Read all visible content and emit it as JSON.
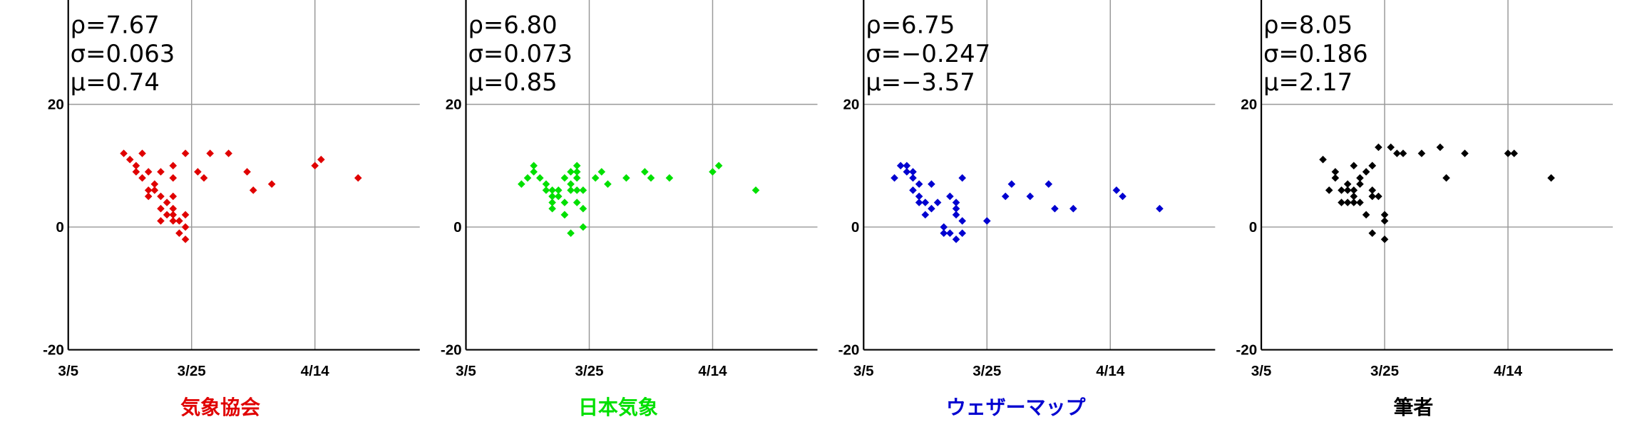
{
  "chart_data": [
    {
      "type": "scatter",
      "title": "気象協会",
      "color": "#e00000",
      "annotations": [
        "ρ=7.67",
        "σ=0.063",
        "μ=0.74"
      ],
      "x": [
        9,
        10,
        11,
        12,
        11,
        12,
        13,
        13,
        13,
        14,
        14,
        15,
        15,
        15,
        15,
        16,
        16,
        17,
        17,
        17,
        17,
        17,
        17,
        18,
        18,
        19,
        19,
        19,
        19,
        21,
        22,
        23,
        26,
        29,
        30,
        33,
        40,
        41,
        47
      ],
      "values": [
        12,
        11,
        10,
        12,
        9,
        8,
        9,
        6,
        5,
        7,
        6,
        9,
        5,
        3,
        1,
        4,
        2,
        1,
        10,
        8,
        5,
        3,
        2,
        1,
        -1,
        12,
        2,
        0,
        -2,
        9,
        8,
        12,
        12,
        9,
        6,
        7,
        10,
        11,
        8
      ],
      "xlim": [
        0,
        57
      ],
      "ylim": [
        -20,
        37
      ],
      "xticks": [
        {
          "value": 0,
          "label": "3/5"
        },
        {
          "value": 20,
          "label": "3/25"
        },
        {
          "value": 40,
          "label": "4/14"
        }
      ],
      "yticks": [
        20,
        0,
        -20
      ]
    },
    {
      "type": "scatter",
      "title": "日本気象",
      "color": "#00e000",
      "annotations": [
        "ρ=6.80",
        "σ=0.073",
        "μ=0.85"
      ],
      "x": [
        9,
        10,
        11,
        11,
        12,
        13,
        13,
        14,
        14,
        14,
        14,
        14,
        15,
        15,
        16,
        16,
        16,
        16,
        17,
        17,
        17,
        17,
        18,
        18,
        18,
        18,
        18,
        19,
        19,
        19,
        21,
        22,
        23,
        26,
        29,
        30,
        33,
        40,
        41,
        47
      ],
      "values": [
        7,
        8,
        9,
        10,
        8,
        6,
        7,
        5,
        6,
        5,
        4,
        3,
        6,
        5,
        2,
        8,
        2,
        4,
        7,
        9,
        -1,
        6,
        9,
        6,
        4,
        10,
        8,
        6,
        3,
        0,
        8,
        9,
        7,
        8,
        9,
        8,
        8,
        9,
        10,
        6
      ],
      "xlim": [
        0,
        57
      ],
      "ylim": [
        -20,
        37
      ],
      "xticks": [
        {
          "value": 0,
          "label": "3/5"
        },
        {
          "value": 20,
          "label": "3/25"
        },
        {
          "value": 40,
          "label": "4/14"
        }
      ],
      "yticks": [
        20,
        0,
        -20
      ]
    },
    {
      "type": "scatter",
      "title": "ウェザーマップ",
      "color": "#0000d0",
      "annotations": [
        "ρ=6.75",
        "σ=−0.247",
        "μ=−3.57"
      ],
      "x": [
        5,
        6,
        7,
        7,
        8,
        8,
        8,
        9,
        9,
        10,
        10,
        11,
        11,
        12,
        13,
        14,
        14,
        15,
        15,
        15,
        15,
        16,
        16,
        16,
        20,
        23,
        24,
        27,
        30,
        31,
        34,
        41,
        42,
        48,
        13,
        9
      ],
      "values": [
        8,
        10,
        9,
        10,
        9,
        8,
        6,
        5,
        4,
        2,
        4,
        7,
        3,
        4,
        0,
        -1,
        5,
        3,
        2,
        -2,
        4,
        1,
        -1,
        8,
        1,
        5,
        7,
        5,
        7,
        3,
        3,
        6,
        5,
        3,
        -1,
        7
      ],
      "xlim": [
        0,
        57
      ],
      "ylim": [
        -20,
        37
      ],
      "xticks": [
        {
          "value": 0,
          "label": "3/5"
        },
        {
          "value": 20,
          "label": "3/25"
        },
        {
          "value": 40,
          "label": "4/14"
        }
      ],
      "yticks": [
        20,
        0,
        -20
      ]
    },
    {
      "type": "scatter",
      "title": "筆者",
      "color": "#000000",
      "annotations": [
        "ρ=8.05",
        "σ=0.186",
        "μ=2.17"
      ],
      "x": [
        10,
        11,
        12,
        12,
        13,
        13,
        14,
        14,
        14,
        15,
        15,
        15,
        15,
        16,
        16,
        16,
        17,
        17,
        18,
        18,
        18,
        18,
        18,
        19,
        19,
        20,
        20,
        20,
        21,
        22,
        23,
        26,
        29,
        30,
        33,
        40,
        41,
        47
      ],
      "values": [
        11,
        6,
        8,
        9,
        6,
        4,
        7,
        6,
        4,
        10,
        5,
        4,
        6,
        8,
        4,
        7,
        2,
        9,
        -1,
        10,
        6,
        5,
        10,
        5,
        13,
        1,
        2,
        -2,
        13,
        12,
        12,
        12,
        13,
        8,
        12,
        12,
        12,
        8
      ],
      "xlim": [
        0,
        57
      ],
      "ylim": [
        -20,
        37
      ],
      "xticks": [
        {
          "value": 0,
          "label": "3/5"
        },
        {
          "value": 20,
          "label": "3/25"
        },
        {
          "value": 40,
          "label": "4/14"
        }
      ],
      "yticks": [
        20,
        0,
        -20
      ]
    }
  ]
}
